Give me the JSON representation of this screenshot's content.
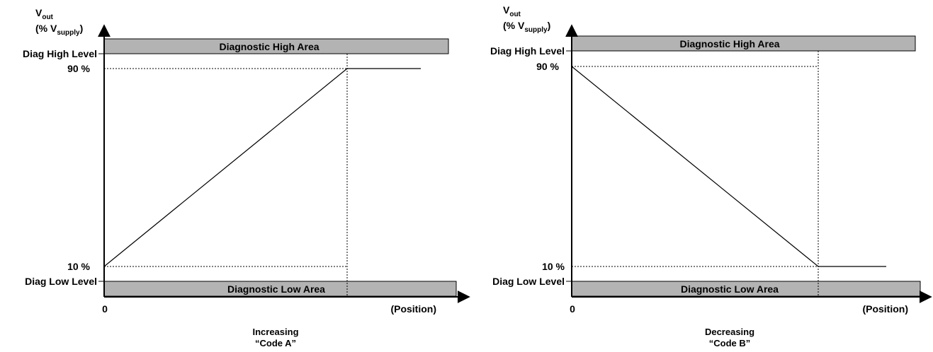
{
  "diagram_a": {
    "y_axis_label_main": "V",
    "y_axis_label_sub": "out",
    "y_axis_label_line2_pre": "(% V",
    "y_axis_label_line2_sub": "supply",
    "y_axis_label_line2_post": ")",
    "diag_high_label": "Diag High Level",
    "level_90_label": "90 %",
    "level_10_label": "10 %",
    "diag_low_label": "Diag Low Level",
    "high_area_label": "Diagnostic High Area",
    "low_area_label": "Diagnostic Low Area",
    "origin_label": "0",
    "x_axis_label": "(Position)",
    "caption_line1": "Increasing",
    "caption_line2": "“Code A”"
  },
  "diagram_b": {
    "y_axis_label_main": "V",
    "y_axis_label_sub": "out",
    "y_axis_label_line2_pre": "(% V",
    "y_axis_label_line2_sub": "supply",
    "y_axis_label_line2_post": ")",
    "diag_high_label": "Diag High Level",
    "level_90_label": "90 %",
    "level_10_label": "10 %",
    "diag_low_label": "Diag Low Level",
    "high_area_label": "Diagnostic High Area",
    "low_area_label": "Diagnostic Low Area",
    "origin_label": "0",
    "x_axis_label": "(Position)",
    "caption_line1": "Decreasing",
    "caption_line2": "“Code B”"
  },
  "colors": {
    "area_fill": "#b3b3b3",
    "line": "#000000"
  }
}
